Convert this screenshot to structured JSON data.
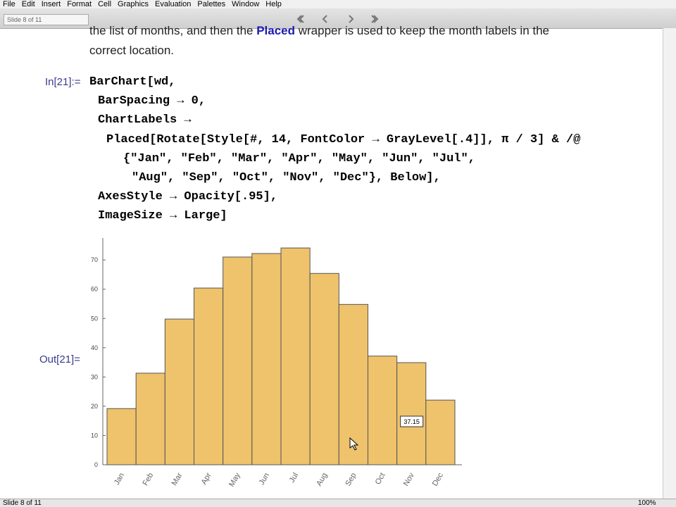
{
  "menu": [
    "File",
    "Edit",
    "Insert",
    "Format",
    "Cell",
    "Graphics",
    "Evaluation",
    "Palettes",
    "Window",
    "Help"
  ],
  "toolbar": {
    "slide": "Slide 8 of 11"
  },
  "paragraph": {
    "line1_start": "the list of months, and then the ",
    "keyword": "Placed",
    "line1_end": " wrapper is used to keep the month labels in the",
    "line2": "correct location."
  },
  "input_label": "In[21]:=",
  "code": [
    "BarChart[wd,",
    "BarSpacing → 0,",
    "ChartLabels →",
    "Placed[Rotate[Style[#, 14, FontColor → GrayLevel[.4]], π / 3] & /@",
    "{\"Jan\", \"Feb\", \"Mar\", \"Apr\", \"May\", \"Jun\", \"Jul\",",
    "\"Aug\", \"Sep\", \"Oct\", \"Nov\", \"Dec\"}, Below],",
    "AxesStyle → Opacity[.95],",
    "ImageSize → Large]"
  ],
  "output_label": "Out[21]=",
  "status": {
    "slide": "Slide 8 of 11",
    "zoom": "100%"
  },
  "chart_data": {
    "type": "bar",
    "categories": [
      "Jan",
      "Feb",
      "Mar",
      "Apr",
      "May",
      "Jun",
      "Jul",
      "Aug",
      "Sep",
      "Oct",
      "Nov",
      "Dec"
    ],
    "values": [
      19.2,
      31.3,
      49.8,
      60.4,
      71.0,
      72.2,
      74.1,
      65.4,
      54.8,
      37.15,
      34.9,
      22.1
    ],
    "color": "#efc26c",
    "ylim": [
      0,
      77.5
    ],
    "yticks": [
      0,
      10,
      20,
      30,
      40,
      50,
      60,
      70
    ],
    "tooltip": "37.15"
  }
}
